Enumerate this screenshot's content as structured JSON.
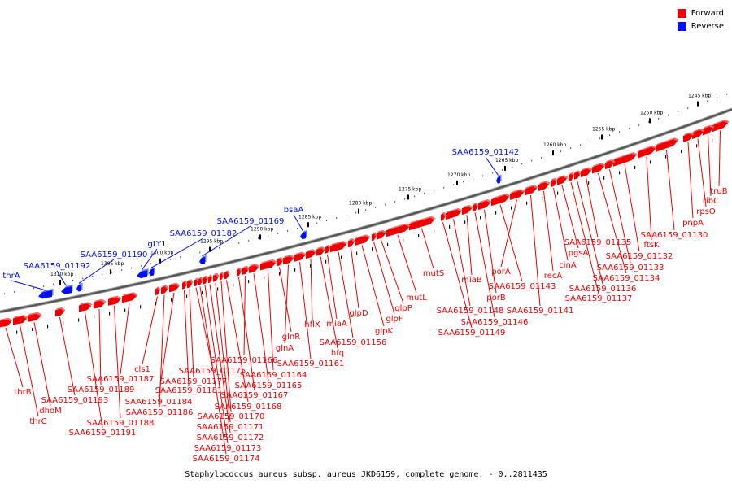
{
  "legend": {
    "forward_label": "Forward",
    "reverse_label": "Reverse",
    "forward_color": "#ee0000",
    "reverse_color": "#0011ee"
  },
  "caption": "Staphylococcus aureus subsp. aureus JKD6159, complete genome. - 0..2811435",
  "axis": {
    "unit": "kbp",
    "tick_labels": [
      "1245 kbp",
      "1250 kbp",
      "1255 kbp",
      "1260 kbp",
      "1265 kbp",
      "1270 kbp",
      "1275 kbp",
      "1280 kbp",
      "1285 kbp",
      "1290 kbp",
      "1295 kbp",
      "1300 kbp",
      "1305 kbp",
      "1310 kbp"
    ]
  },
  "genes": {
    "forward": [
      "truB",
      "ribC",
      "rpsO",
      "pnpA",
      "SAA6159_01130",
      "ftsK",
      "SAA6159_01132",
      "SAA6159_01133",
      "SAA6159_01134",
      "SAA6159_01135",
      "SAA6159_01136",
      "SAA6159_01137",
      "pgsA",
      "cinA",
      "recA",
      "SAA6159_01141",
      "porA",
      "SAA6159_01143",
      "porB",
      "SAA6159_01146",
      "miaB",
      "SAA6159_01148",
      "SAA6159_01149",
      "mutS",
      "mutL",
      "glpP",
      "glpF",
      "glpK",
      "glpD",
      "SAA6159_01156",
      "miaA",
      "hfq",
      "hflX",
      "SAA6159_01161",
      "glnA",
      "glnR",
      "SAA6159_01164",
      "SAA6159_01165",
      "SAA6159_01166",
      "SAA6159_01167",
      "SAA6159_01168",
      "SAA6159_01170",
      "SAA6159_01171",
      "SAA6159_01172",
      "SAA6159_01173",
      "SAA6159_01174",
      "SAA6159_01175",
      "SAA6159_01177",
      "SAA6159_01181",
      "SAA6159_01184",
      "SAA6159_01186",
      "cls1",
      "SAA6159_01187",
      "SAA6159_01188",
      "SAA6159_01189",
      "SAA6159_01191",
      "SAA6159_01193",
      "dhoM",
      "thrC",
      "thrB"
    ],
    "reverse": [
      "SAA6159_01142",
      "bsaA",
      "SAA6159_01169",
      "SAA6159_01182",
      "gLY1",
      "SAA6159_01190",
      "SAA6159_01192",
      "thrA"
    ]
  }
}
